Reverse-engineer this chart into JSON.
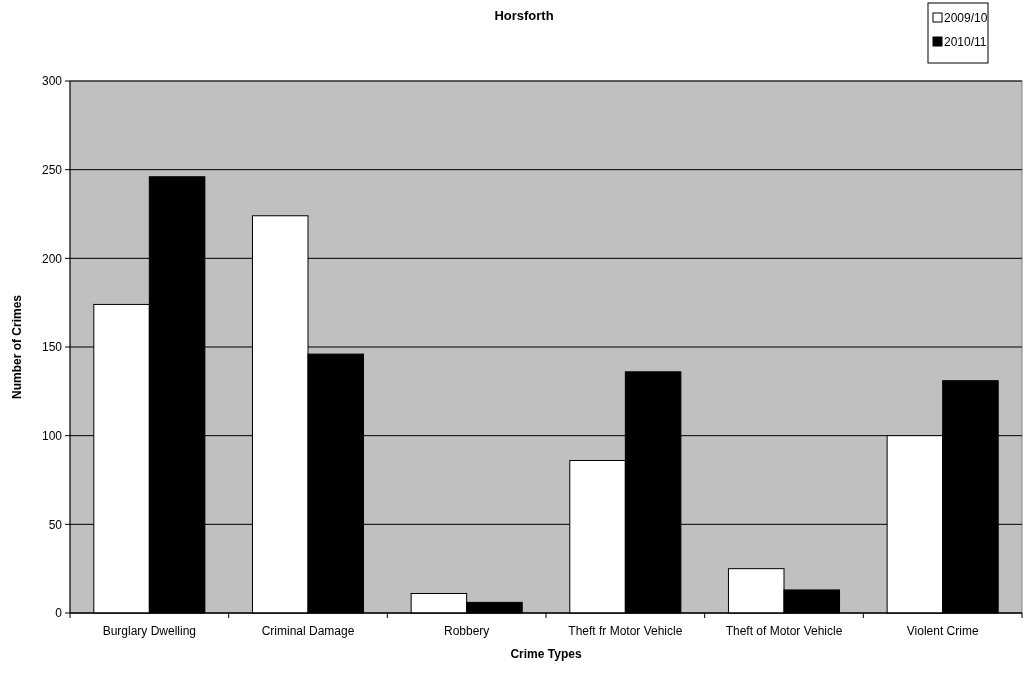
{
  "chart_data": {
    "type": "bar",
    "title": "Horsforth",
    "xlabel": "Crime Types",
    "ylabel": "Number of Crimes",
    "categories": [
      "Burglary Dwelling",
      "Criminal Damage",
      "Robbery",
      "Theft fr Motor Vehicle",
      "Theft of Motor Vehicle",
      "Violent Crime"
    ],
    "series": [
      {
        "name": "2009/10",
        "color": "#ffffff",
        "values": [
          174,
          224,
          11,
          86,
          25,
          100
        ]
      },
      {
        "name": "2010/11",
        "color": "#000000",
        "values": [
          246,
          146,
          6,
          136,
          13,
          131
        ]
      }
    ],
    "ylim": [
      0,
      300
    ],
    "yticks": [
      0,
      50,
      100,
      150,
      200,
      250,
      300
    ],
    "grid": "y",
    "legend": "top right"
  }
}
